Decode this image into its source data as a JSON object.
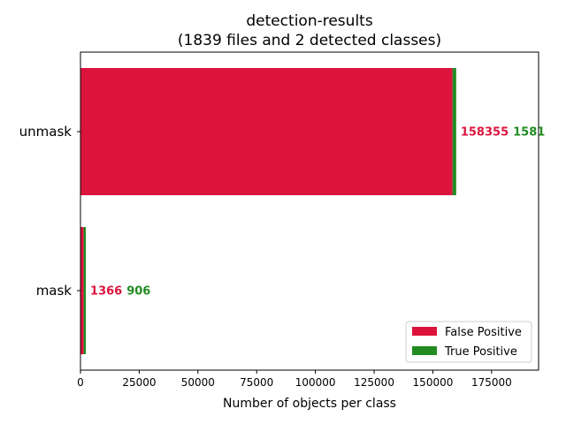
{
  "chart_data": {
    "type": "bar",
    "orientation": "horizontal",
    "stacked": true,
    "title": "detection-results",
    "subtitle": "(1839 files and 2 detected classes)",
    "xlabel": "Number of objects per class",
    "ylabel": "",
    "categories": [
      "mask",
      "unmask"
    ],
    "series": [
      {
        "name": "False Positive",
        "color": "#dc143c",
        "values": [
          1366,
          158355
        ]
      },
      {
        "name": "True Positive",
        "color": "#228b22",
        "values": [
          906,
          1581
        ]
      }
    ],
    "xlim": [
      0,
      195000
    ],
    "xticks": [
      0,
      25000,
      50000,
      75000,
      100000,
      125000,
      150000,
      175000
    ],
    "xtick_labels": [
      "0",
      "25000",
      "50000",
      "75000",
      "100000",
      "125000",
      "150000",
      "175000"
    ],
    "legend": {
      "position": "lower-right",
      "labels": [
        "False Positive",
        "True Positive"
      ]
    },
    "grid": false
  }
}
